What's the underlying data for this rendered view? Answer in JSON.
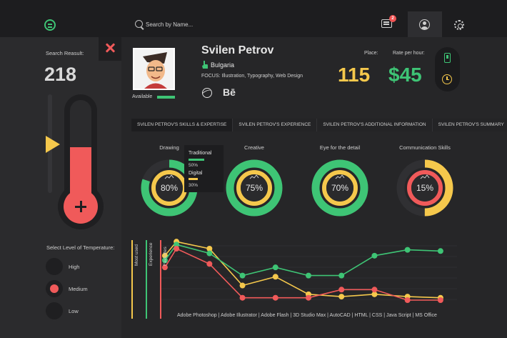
{
  "header": {
    "search_placeholder": "Search by Name...",
    "messages_badge": "2"
  },
  "sidebar": {
    "search_result_label": "Search Reasult:",
    "search_result_value": "218",
    "temperature_fill": 0.55,
    "temperature_label": "Select Level of Temperature:",
    "temperature_options": [
      {
        "label": "High",
        "selected": false
      },
      {
        "label": "Medium",
        "selected": true
      },
      {
        "label": "Low",
        "selected": false
      }
    ]
  },
  "profile": {
    "name": "Svilen Petrov",
    "country": "Bulgaria",
    "focus": "FOCUS: Illustration, Typography, Web Design",
    "available_label": "Available",
    "behance": "Bē",
    "place_label": "Place:",
    "place_value": "115",
    "rate_label": "Rate per hour:",
    "rate_value": "$45"
  },
  "tabs": [
    {
      "label": "SVILEN PETROV'S SKILLS & EXPERTISE",
      "active": true
    },
    {
      "label": "SVILEN PETROV'S EXPERIENCE",
      "active": false
    },
    {
      "label": "SVILEN PETROV'S ADDITIONAL INFORMATION",
      "active": false
    },
    {
      "label": "SVILEN PETROV'S SUMMARY",
      "active": false
    }
  ],
  "skills": [
    {
      "title": "Drawing",
      "value": "80%",
      "outer_color": "#3ec475",
      "inner_color": "#f5c84c",
      "outer": 0.8,
      "inner": 1.0
    },
    {
      "title": "Creative",
      "value": "75%",
      "outer_color": "#3ec475",
      "inner_color": "#f5c84c",
      "outer": 1.0,
      "inner": 1.0
    },
    {
      "title": "Eye for the detail",
      "value": "70%",
      "outer_color": "#3ec475",
      "inner_color": "#f5c84c",
      "outer": 1.0,
      "inner": 1.0
    },
    {
      "title": "Communication Skills",
      "value": "15%",
      "outer_color": "#f5c84c",
      "inner_color": "#f05a5a",
      "outer": 0.5,
      "inner": 1.0
    }
  ],
  "tooltip": {
    "items": [
      {
        "label": "Traditional",
        "value": "50%",
        "fraction": 0.5,
        "color": "#3ec475"
      },
      {
        "label": "Digital",
        "value": "30%",
        "fraction": 0.3,
        "color": "#f5c84c"
      }
    ]
  },
  "chart_data": {
    "type": "line",
    "categories": [
      "Adobe Photoshop",
      "Adobe Illustrator",
      "Adobe Flash",
      "3D Studio Max",
      "AutoCAD",
      "HTML",
      "CSS",
      "Java Script",
      "MS Office"
    ],
    "x_axis_text": "Adobe Photoshop  |  Adobe Illustrator  |  Adobe Flash  |  3D Studio Max  |  AutoCAD  |  HTML  |  CSS  |  Java Script  |  MS Office",
    "series": [
      {
        "name": "Most used",
        "color": "#f5c84c",
        "points": [
          [
            0.15,
            76
          ],
          [
            0.5,
            100
          ],
          [
            1.5,
            88
          ],
          [
            2.5,
            25
          ],
          [
            3.5,
            40
          ],
          [
            4.5,
            10
          ],
          [
            5.5,
            6
          ],
          [
            6.5,
            10
          ],
          [
            7.5,
            6
          ],
          [
            8.5,
            4
          ]
        ]
      },
      {
        "name": "Experience",
        "color": "#3ec475",
        "points": [
          [
            0.15,
            68
          ],
          [
            0.5,
            95
          ],
          [
            1.5,
            80
          ],
          [
            2.5,
            42
          ],
          [
            3.5,
            56
          ],
          [
            4.5,
            42
          ],
          [
            5.5,
            42
          ],
          [
            6.5,
            76
          ],
          [
            7.5,
            86
          ],
          [
            8.5,
            84
          ]
        ]
      },
      {
        "name": "Favorites",
        "color": "#f05a5a",
        "points": [
          [
            0.15,
            56
          ],
          [
            0.5,
            88
          ],
          [
            1.5,
            62
          ],
          [
            2.5,
            4
          ],
          [
            3.5,
            4
          ],
          [
            4.5,
            4
          ],
          [
            5.5,
            18
          ],
          [
            6.5,
            18
          ],
          [
            7.5,
            0
          ],
          [
            8.5,
            0
          ]
        ]
      }
    ],
    "ylim": [
      0,
      110
    ]
  }
}
